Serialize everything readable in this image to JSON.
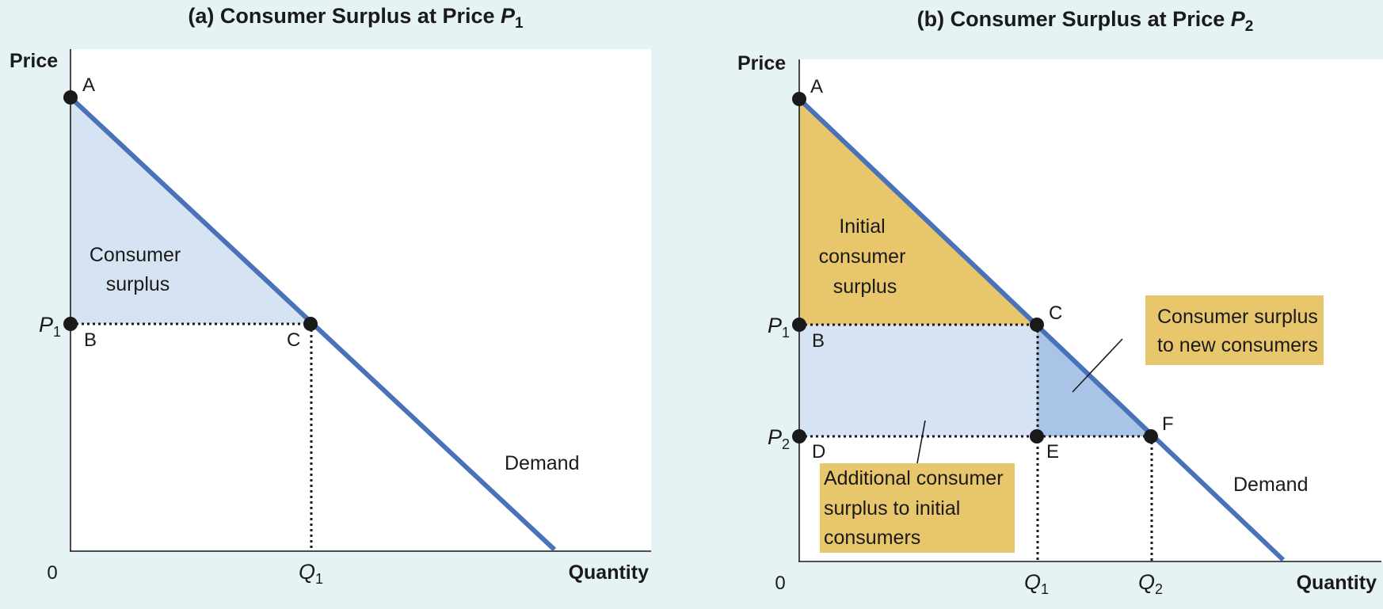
{
  "panel_a": {
    "title_prefix": "(a) Consumer Surplus at Price ",
    "title_var": "P",
    "title_sub": "1",
    "ylabel": "Price",
    "xlabel": "Quantity",
    "origin": "0",
    "points": {
      "A": "A",
      "B": "B",
      "C": "C"
    },
    "p1_var": "P",
    "p1_sub": "1",
    "q1_var": "Q",
    "q1_sub": "1",
    "surplus_line1": "Consumer",
    "surplus_line2": "surplus",
    "demand_label": "Demand"
  },
  "panel_b": {
    "title_prefix": "(b) Consumer Surplus at Price ",
    "title_var": "P",
    "title_sub": "2",
    "ylabel": "Price",
    "xlabel": "Quantity",
    "origin": "0",
    "points": {
      "A": "A",
      "B": "B",
      "C": "C",
      "D": "D",
      "E": "E",
      "F": "F"
    },
    "p1_var": "P",
    "p1_sub": "1",
    "p2_var": "P",
    "p2_sub": "2",
    "q1_var": "Q",
    "q1_sub": "1",
    "q2_var": "Q",
    "q2_sub": "2",
    "initial_line1": "Initial",
    "initial_line2": "consumer",
    "initial_line3": "surplus",
    "new_line1": "Consumer surplus",
    "new_line2": "to new consumers",
    "additional_line1": "Additional consumer",
    "additional_line2": "surplus to initial",
    "additional_line3": "consumers",
    "demand_label": "Demand"
  },
  "colors": {
    "background": "#e6f3f5",
    "plot_bg": "#ffffff",
    "demand_line": "#4a72b8",
    "light_blue_fill": "#d5e3f2",
    "mid_blue_fill": "#a9c4e6",
    "gold_fill": "#e8c66c"
  }
}
